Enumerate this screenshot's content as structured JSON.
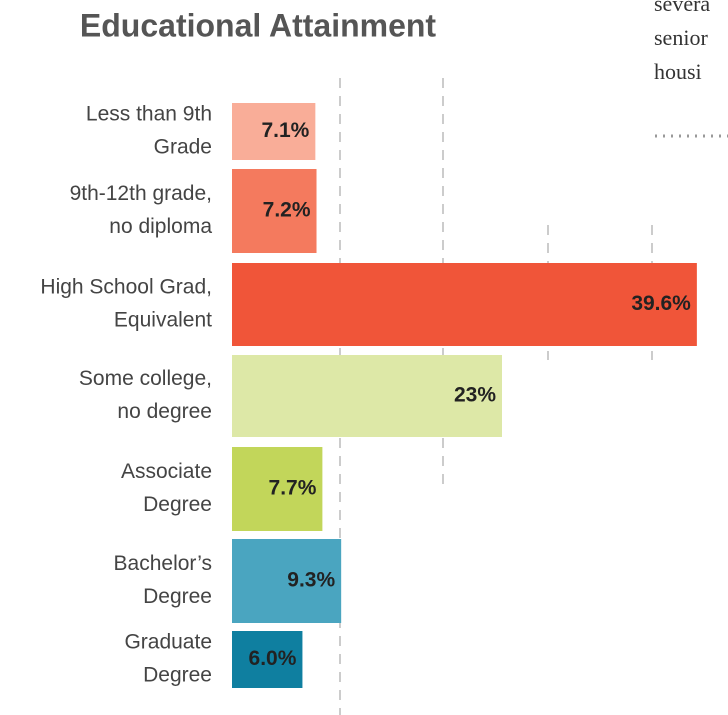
{
  "chart_data": {
    "type": "bar",
    "orientation": "horizontal",
    "title": "Educational Attainment",
    "categories": [
      [
        "Less than 9th",
        "Grade"
      ],
      [
        "9th-12th grade,",
        "no diploma"
      ],
      [
        "High School Grad,",
        "Equivalent"
      ],
      [
        "Some college,",
        "no degree"
      ],
      [
        "Associate",
        "Degree"
      ],
      [
        "Bachelor’s",
        "Degree"
      ],
      [
        "Graduate",
        "Degree"
      ]
    ],
    "values": [
      7.1,
      7.2,
      39.6,
      23,
      7.7,
      9.3,
      6.0
    ],
    "value_labels": [
      "7.1%",
      "7.2%",
      "39.6%",
      "23%",
      "7.7%",
      "9.3%",
      "6.0%"
    ],
    "colors": [
      "#f9ad98",
      "#f47a5e",
      "#f05539",
      "#dde8a7",
      "#c2d65a",
      "#4aa5c0",
      "#0f7fa0"
    ]
  },
  "side_text": [
    "severa",
    "senior",
    "housi"
  ]
}
